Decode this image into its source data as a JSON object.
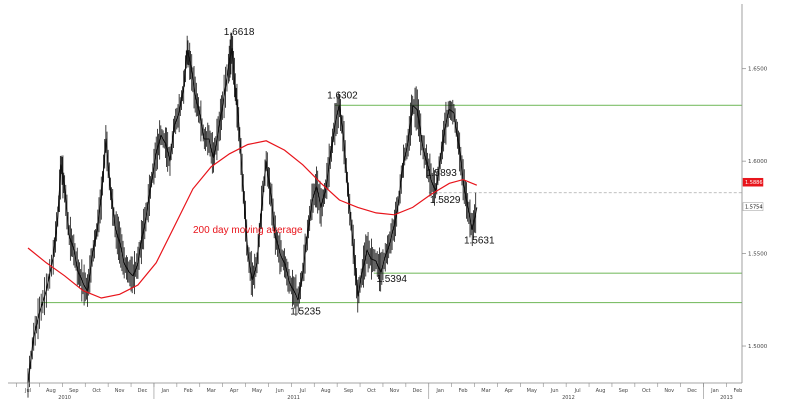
{
  "chart_data": {
    "type": "line",
    "title": "",
    "xlabel": "",
    "ylabel": "",
    "ylim": [
      1.48,
      1.685
    ],
    "y_ticks": [
      "1.5000",
      "1.5500",
      "1.6000",
      "1.6500"
    ],
    "x_months": [
      "Jul",
      "Aug",
      "Sep",
      "Oct",
      "Nov",
      "Dec",
      "Jan",
      "Feb",
      "Mar",
      "Apr",
      "May",
      "Jun",
      "Jul",
      "Aug",
      "Sep",
      "Oct",
      "Nov",
      "Dec",
      "Jan",
      "Feb",
      "Mar",
      "Apr",
      "May",
      "Jun",
      "Jul",
      "Aug",
      "Sep",
      "Oct",
      "Nov",
      "Dec",
      "Jan",
      "Feb"
    ],
    "x_years": [
      "2010",
      "2011",
      "2012",
      "2013"
    ],
    "price_series": {
      "name": "",
      "points": [
        [
          0,
          1.48
        ],
        [
          0.25,
          1.505
        ],
        [
          0.5,
          1.518
        ],
        [
          0.8,
          1.53
        ],
        [
          1.1,
          1.548
        ],
        [
          1.3,
          1.57
        ],
        [
          1.45,
          1.598
        ],
        [
          1.6,
          1.585
        ],
        [
          1.8,
          1.56
        ],
        [
          2.0,
          1.552
        ],
        [
          2.2,
          1.54
        ],
        [
          2.4,
          1.534
        ],
        [
          2.6,
          1.53
        ],
        [
          2.8,
          1.548
        ],
        [
          3.0,
          1.562
        ],
        [
          3.2,
          1.58
        ],
        [
          3.4,
          1.612
        ],
        [
          3.6,
          1.585
        ],
        [
          3.8,
          1.565
        ],
        [
          4.0,
          1.556
        ],
        [
          4.2,
          1.545
        ],
        [
          4.4,
          1.54
        ],
        [
          4.6,
          1.538
        ],
        [
          4.8,
          1.545
        ],
        [
          5.0,
          1.56
        ],
        [
          5.2,
          1.573
        ],
        [
          5.4,
          1.59
        ],
        [
          5.6,
          1.604
        ],
        [
          5.8,
          1.614
        ],
        [
          6.0,
          1.61
        ],
        [
          6.2,
          1.6
        ],
        [
          6.4,
          1.62
        ],
        [
          6.6,
          1.626
        ],
        [
          6.8,
          1.64
        ],
        [
          6.95,
          1.66
        ],
        [
          7.1,
          1.652
        ],
        [
          7.3,
          1.636
        ],
        [
          7.5,
          1.625
        ],
        [
          7.7,
          1.612
        ],
        [
          7.9,
          1.612
        ],
        [
          8.1,
          1.602
        ],
        [
          8.3,
          1.615
        ],
        [
          8.5,
          1.63
        ],
        [
          8.75,
          1.65
        ],
        [
          8.9,
          1.661
        ],
        [
          9.05,
          1.64
        ],
        [
          9.2,
          1.62
        ],
        [
          9.4,
          1.585
        ],
        [
          9.6,
          1.55
        ],
        [
          9.8,
          1.536
        ],
        [
          10.0,
          1.545
        ],
        [
          10.2,
          1.575
        ],
        [
          10.4,
          1.6
        ],
        [
          10.6,
          1.582
        ],
        [
          10.8,
          1.56
        ],
        [
          11.0,
          1.55
        ],
        [
          11.2,
          1.545
        ],
        [
          11.4,
          1.535
        ],
        [
          11.6,
          1.53
        ],
        [
          11.8,
          1.525
        ],
        [
          12.0,
          1.54
        ],
        [
          12.2,
          1.56
        ],
        [
          12.4,
          1.578
        ],
        [
          12.6,
          1.586
        ],
        [
          12.8,
          1.575
        ],
        [
          13.0,
          1.585
        ],
        [
          13.2,
          1.602
        ],
        [
          13.4,
          1.62
        ],
        [
          13.6,
          1.63
        ],
        [
          13.8,
          1.61
        ],
        [
          14.0,
          1.58
        ],
        [
          14.2,
          1.555
        ],
        [
          14.4,
          1.527
        ],
        [
          14.6,
          1.54
        ],
        [
          14.8,
          1.552
        ],
        [
          15.0,
          1.547
        ],
        [
          15.2,
          1.546
        ],
        [
          15.4,
          1.54
        ],
        [
          15.6,
          1.548
        ],
        [
          15.8,
          1.556
        ],
        [
          16.0,
          1.565
        ],
        [
          16.2,
          1.58
        ],
        [
          16.4,
          1.6
        ],
        [
          16.6,
          1.61
        ],
        [
          16.8,
          1.63
        ],
        [
          17.0,
          1.628
        ],
        [
          17.2,
          1.61
        ],
        [
          17.4,
          1.6
        ],
        [
          17.6,
          1.59
        ],
        [
          17.8,
          1.584
        ],
        [
          18.0,
          1.6
        ],
        [
          18.2,
          1.618
        ],
        [
          18.4,
          1.628
        ],
        [
          18.6,
          1.626
        ],
        [
          18.8,
          1.61
        ],
        [
          19.0,
          1.59
        ],
        [
          19.2,
          1.575
        ],
        [
          19.4,
          1.563
        ],
        [
          19.6,
          1.575
        ]
      ]
    },
    "moving_average": {
      "name": "200 day moving average",
      "color": "#e8141b",
      "points": [
        [
          0,
          1.553
        ],
        [
          0.8,
          1.545
        ],
        [
          1.6,
          1.538
        ],
        [
          2.4,
          1.53
        ],
        [
          3.2,
          1.526
        ],
        [
          4.0,
          1.528
        ],
        [
          4.8,
          1.533
        ],
        [
          5.6,
          1.545
        ],
        [
          6.4,
          1.565
        ],
        [
          7.2,
          1.585
        ],
        [
          8.0,
          1.597
        ],
        [
          8.8,
          1.604
        ],
        [
          9.6,
          1.609
        ],
        [
          10.4,
          1.611
        ],
        [
          11.2,
          1.606
        ],
        [
          12.0,
          1.598
        ],
        [
          12.8,
          1.588
        ],
        [
          13.6,
          1.579
        ],
        [
          14.4,
          1.575
        ],
        [
          15.2,
          1.572
        ],
        [
          16.0,
          1.571
        ],
        [
          16.8,
          1.575
        ],
        [
          17.6,
          1.582
        ],
        [
          18.4,
          1.588
        ],
        [
          19.0,
          1.59
        ],
        [
          19.6,
          1.587
        ]
      ]
    },
    "levels": [
      {
        "label": "1.6302",
        "value": 1.6302
      },
      {
        "label": "1.5394",
        "value": 1.5394
      },
      {
        "label": "1.5235",
        "value": 1.5235
      },
      {
        "label": "1.5829",
        "value": 1.5829
      }
    ],
    "annotations": [
      {
        "label": "1.6618",
        "x": 8.9,
        "y": 1.6618
      },
      {
        "label": "1.6302",
        "x": 13.5,
        "y": 1.6302
      },
      {
        "label": "1.5235",
        "x": 11.8,
        "y": 1.5235
      },
      {
        "label": "1.5394",
        "x": 15.3,
        "y": 1.5394
      },
      {
        "label": "1.5829",
        "x": 17.9,
        "y": 1.5829
      },
      {
        "label": "1.5893",
        "x": 18.7,
        "y": 1.5893
      },
      {
        "label": "1.5631",
        "x": 19.3,
        "y": 1.5631
      }
    ],
    "ma_label": "200 day moving average",
    "right_flags": [
      {
        "label": "1.5886",
        "value": 1.5886,
        "style": "red"
      },
      {
        "label": "1.5754",
        "value": 1.5754,
        "style": "white"
      }
    ],
    "colors": {
      "price": "#111111",
      "ma": "#e8141b",
      "support": "#7fbf6a",
      "axis": "#888888"
    },
    "grid": false
  }
}
